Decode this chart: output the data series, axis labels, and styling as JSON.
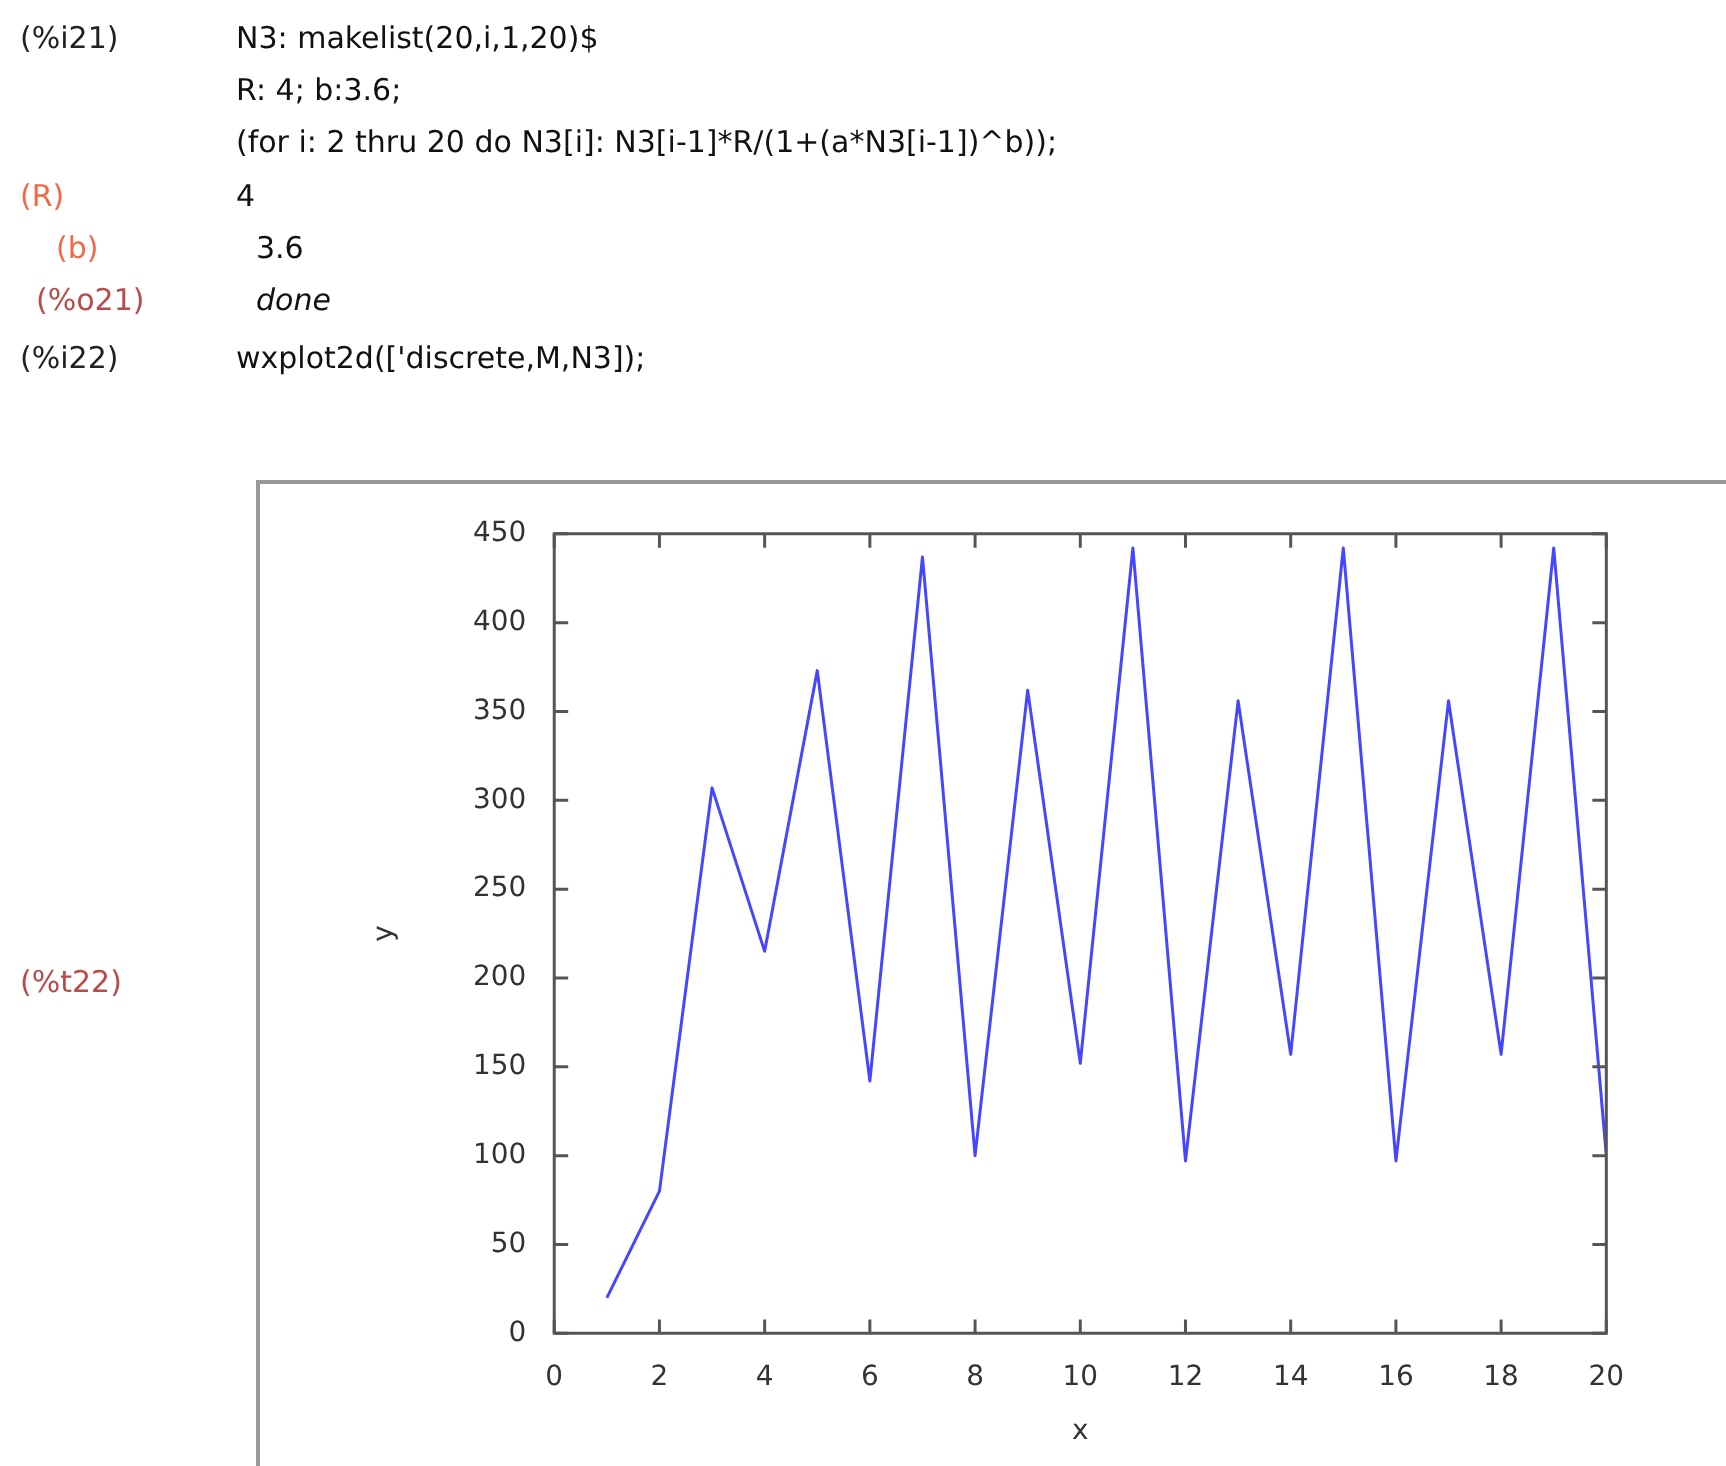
{
  "chart_data": {
    "type": "line",
    "xlabel": "x",
    "ylabel": "y",
    "x": [
      1,
      2,
      3,
      4,
      5,
      6,
      7,
      8,
      9,
      10,
      11,
      12,
      13,
      14,
      15,
      16,
      17,
      18,
      19,
      20
    ],
    "series": [
      {
        "color": "#4646ff",
        "values": [
          20,
          80,
          307,
          215,
          373,
          142,
          437,
          100,
          362,
          152,
          442,
          97,
          356,
          157,
          442,
          97,
          356,
          157,
          442,
          100
        ]
      }
    ],
    "xlim": [
      0,
      20
    ],
    "xticks": [
      0,
      2,
      4,
      6,
      8,
      10,
      12,
      14,
      16,
      18,
      20
    ],
    "ylim": [
      0,
      450
    ],
    "yticks": [
      0,
      50,
      100,
      150,
      200,
      250,
      300,
      350,
      400,
      450
    ],
    "grid": false,
    "legend": false,
    "annotations": [
      "(%i21)",
      "N3: makelist(20,i,1,20)$",
      "R: 4; b:3.6;",
      "(for i: 2 thru 20 do N3[i]: N3[i-1]*R/(1+(a*N3[i-1])^b));",
      "(R)",
      "4",
      "(b)",
      "3.6",
      "(%o21)",
      "done",
      "(%i22)",
      "wxplot2d(['discrete,M,N3]);",
      "(%t22)"
    ]
  }
}
